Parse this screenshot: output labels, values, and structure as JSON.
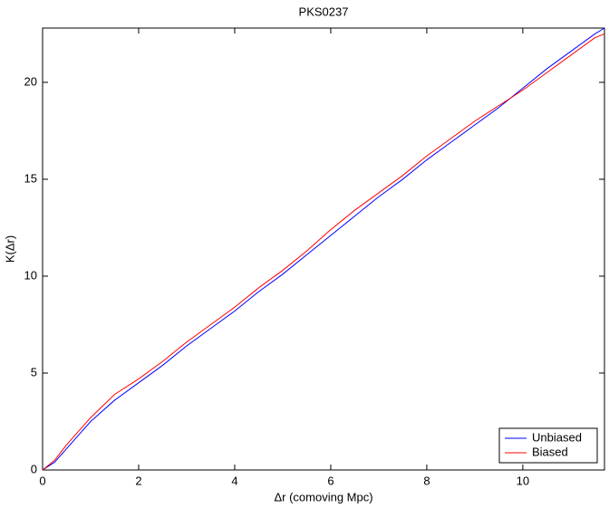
{
  "chart_data": {
    "type": "line",
    "title": "PKS0237",
    "x_label": "Δr (comoving Mpc)",
    "y_label": "K(Δr)",
    "x": [
      0,
      0.25,
      0.5,
      0.75,
      1,
      1.5,
      2,
      2.5,
      3,
      3.5,
      4,
      4.5,
      5,
      5.5,
      6,
      6.5,
      7,
      7.5,
      8,
      8.5,
      9,
      9.5,
      10,
      10.5,
      11,
      11.5,
      11.7
    ],
    "series": [
      {
        "name": "Unbiased",
        "color": "#0000ff",
        "values": [
          0,
          0.4,
          1.1,
          1.8,
          2.5,
          3.6,
          4.5,
          5.4,
          6.4,
          7.3,
          8.2,
          9.2,
          10.1,
          11.1,
          12.1,
          13.1,
          14.1,
          15.0,
          16.0,
          16.9,
          17.8,
          18.7,
          19.7,
          20.7,
          21.6,
          22.5,
          22.8
        ]
      },
      {
        "name": "Biased",
        "color": "#ff0000",
        "values": [
          0,
          0.5,
          1.3,
          2.0,
          2.7,
          3.9,
          4.7,
          5.6,
          6.6,
          7.5,
          8.4,
          9.4,
          10.3,
          11.3,
          12.4,
          13.4,
          14.3,
          15.2,
          16.2,
          17.1,
          18.0,
          18.8,
          19.6,
          20.5,
          21.4,
          22.3,
          22.5
        ]
      }
    ],
    "xlim": [
      0,
      11.7
    ],
    "ylim": [
      0,
      22.8
    ],
    "xticks": [
      0,
      2,
      4,
      6,
      8,
      10
    ],
    "yticks": [
      0,
      5,
      10,
      15,
      20
    ],
    "legend": "lower right"
  }
}
